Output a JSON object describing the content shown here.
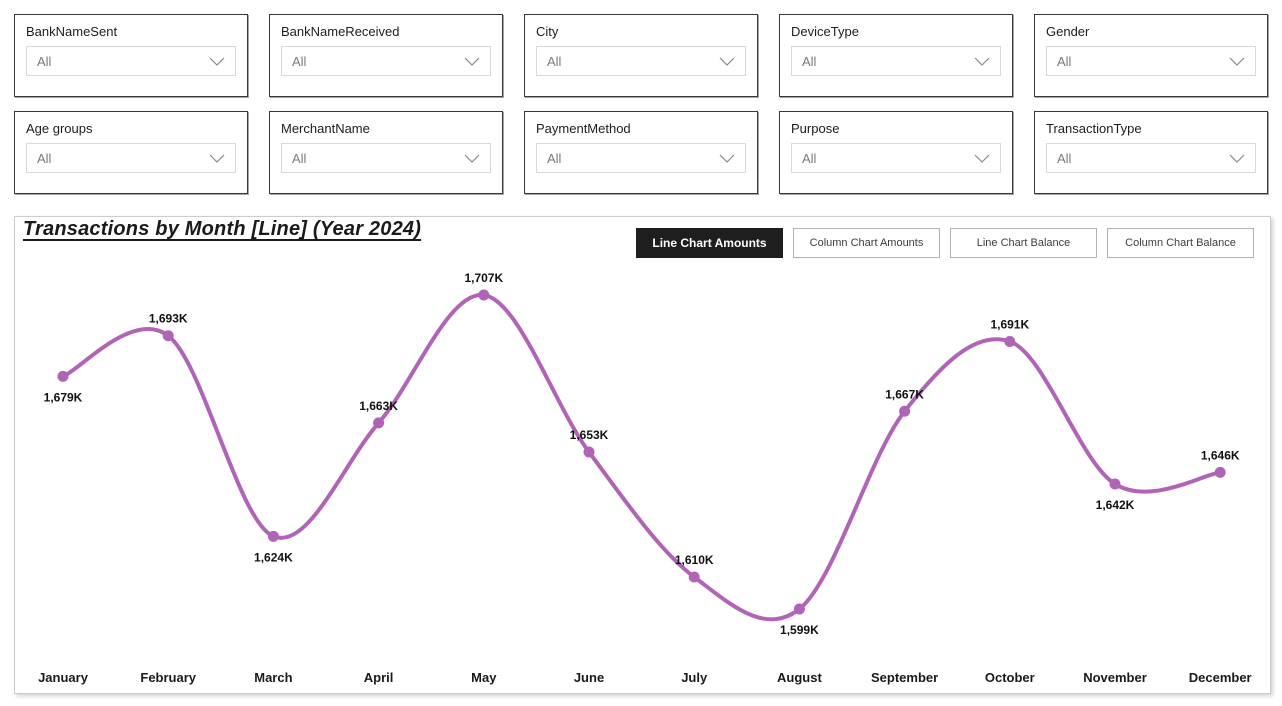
{
  "slicers": {
    "items": [
      {
        "label": "BankNameSent",
        "value": "All"
      },
      {
        "label": "BankNameReceived",
        "value": "All"
      },
      {
        "label": "City",
        "value": "All"
      },
      {
        "label": "DeviceType",
        "value": "All"
      },
      {
        "label": "Gender",
        "value": "All"
      },
      {
        "label": "Age groups",
        "value": "All"
      },
      {
        "label": "MerchantName",
        "value": "All"
      },
      {
        "label": "PaymentMethod",
        "value": "All"
      },
      {
        "label": "Purpose",
        "value": "All"
      },
      {
        "label": "TransactionType",
        "value": "All"
      }
    ]
  },
  "chart_panel": {
    "title": "Transactions by Month [Line] (Year 2024)",
    "buttons": [
      {
        "label": "Line Chart Amounts",
        "active": true
      },
      {
        "label": "Column Chart Amounts",
        "active": false
      },
      {
        "label": "Line Chart Balance",
        "active": false
      },
      {
        "label": "Column Chart Balance",
        "active": false
      }
    ]
  },
  "chart_data": {
    "type": "line",
    "title": "Transactions by Month [Line] (Year 2024)",
    "categories": [
      "January",
      "February",
      "March",
      "April",
      "May",
      "June",
      "July",
      "August",
      "September",
      "October",
      "November",
      "December"
    ],
    "series": [
      {
        "name": "Transactions",
        "values": [
          1679,
          1693,
          1624,
          1663,
          1707,
          1653,
          1610,
          1599,
          1667,
          1691,
          1642,
          1646
        ],
        "unit": "K"
      }
    ],
    "data_labels": [
      "1,679K",
      "1,693K",
      "1,624K",
      "1,663K",
      "1,707K",
      "1,653K",
      "1,610K",
      "1,599K",
      "1,667K",
      "1,691K",
      "1,642K",
      "1,646K"
    ],
    "label_placement": [
      "below",
      "above",
      "below",
      "above",
      "above",
      "above",
      "above",
      "below",
      "above",
      "above",
      "below",
      "above"
    ],
    "line_color": "#b064b6",
    "line_style": "smooth",
    "ylim": [
      1590,
      1715
    ],
    "grid": false,
    "legend": "none"
  }
}
